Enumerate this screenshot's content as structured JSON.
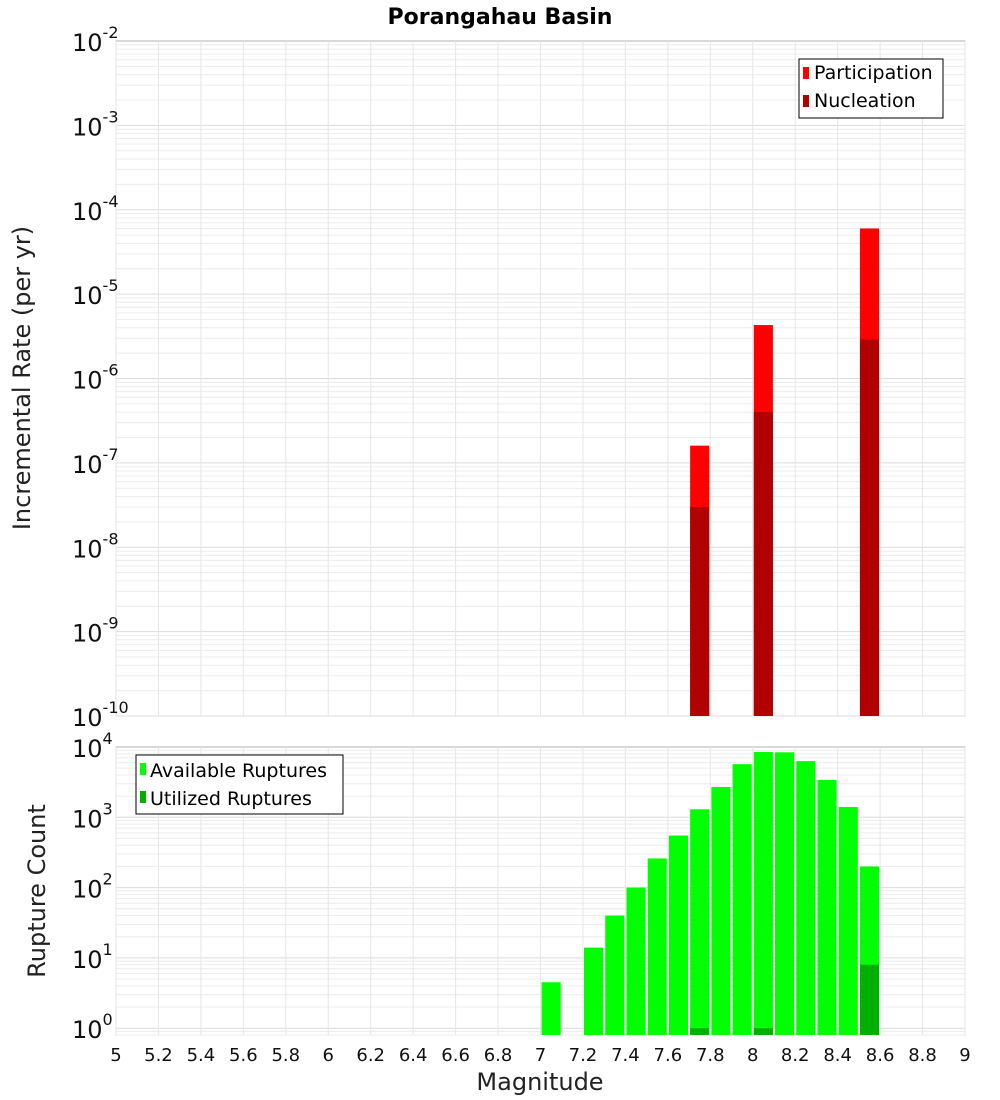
{
  "chart_data": [
    {
      "type": "bar",
      "title": "Porangahau Basin",
      "xlabel": "",
      "ylabel": "Incremental Rate (per yr)",
      "xlim": [
        5,
        9
      ],
      "ylim": [
        1e-10,
        0.01
      ],
      "yscale": "log",
      "y_tick_exponents": [
        -2,
        -3,
        -4,
        -5,
        -6,
        -7,
        -8,
        -9,
        -10
      ],
      "legend": {
        "position": "top-right",
        "entries": [
          "Participation",
          "Nucleation"
        ]
      },
      "series": [
        {
          "name": "Participation",
          "color": "#ff0000",
          "x": [
            7.75,
            8.05,
            8.55
          ],
          "values": [
            1.6e-07,
            4.3e-06,
            6e-05
          ]
        },
        {
          "name": "Nucleation",
          "color": "#b00000",
          "x": [
            7.75,
            8.05,
            8.55
          ],
          "values": [
            3e-08,
            4e-07,
            2.9e-06
          ]
        }
      ]
    },
    {
      "type": "bar",
      "xlabel": "Magnitude",
      "ylabel": "Rupture Count",
      "xlim": [
        5,
        9
      ],
      "ylim": [
        0.8,
        10000
      ],
      "yscale": "log",
      "y_tick_exponents": [
        0,
        1,
        2,
        3,
        4
      ],
      "x_ticks": [
        "5",
        "5.2",
        "5.4",
        "5.6",
        "5.8",
        "6",
        "6.2",
        "6.4",
        "6.6",
        "6.8",
        "7",
        "7.2",
        "7.4",
        "7.6",
        "7.8",
        "8",
        "8.2",
        "8.4",
        "8.6",
        "8.8",
        "9"
      ],
      "legend": {
        "position": "top-left",
        "entries": [
          "Available Ruptures",
          "Utilized Ruptures"
        ]
      },
      "series": [
        {
          "name": "Available Ruptures",
          "color": "#00ff00",
          "x": [
            7.05,
            7.25,
            7.35,
            7.45,
            7.55,
            7.65,
            7.75,
            7.85,
            7.95,
            8.05,
            8.15,
            8.25,
            8.35,
            8.45,
            8.55
          ],
          "values": [
            4.5,
            14,
            40,
            100,
            260,
            550,
            1300,
            2700,
            5700,
            8500,
            8400,
            6300,
            3400,
            1400,
            200
          ]
        },
        {
          "name": "Utilized Ruptures",
          "color": "#00b000",
          "x": [
            7.75,
            8.05,
            8.55
          ],
          "values": [
            1,
            1,
            8
          ]
        }
      ]
    }
  ]
}
